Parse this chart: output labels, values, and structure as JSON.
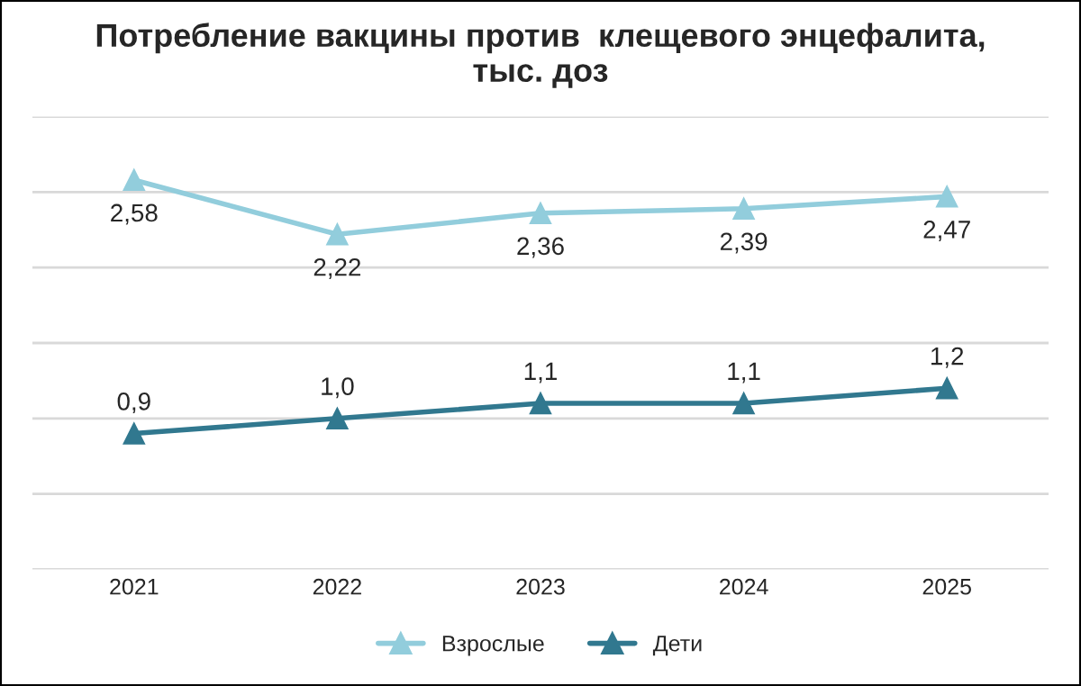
{
  "chart_data": {
    "type": "line",
    "title": "Потребление вакцины против  клещевого энцефалита,\nтыс. доз",
    "categories": [
      "2021",
      "2022",
      "2023",
      "2024",
      "2025"
    ],
    "series": [
      {
        "name": "Взрослые",
        "color": "#92cddc",
        "values": [
          2.58,
          2.22,
          2.36,
          2.39,
          2.47
        ],
        "value_labels": [
          "2,58",
          "2,22",
          "2,36",
          "2,39",
          "2,47"
        ]
      },
      {
        "name": "Дети",
        "color": "#31788f",
        "values": [
          0.9,
          1.0,
          1.1,
          1.1,
          1.2
        ],
        "value_labels": [
          "0,9",
          "1,0",
          "1,1",
          "1,1",
          "1,2"
        ]
      }
    ],
    "ylim": [
      0,
      3
    ],
    "yticks": [
      {
        "value": 0,
        "label": null
      },
      {
        "value": 0.5,
        "label": null
      },
      {
        "value": 1,
        "label": null
      },
      {
        "value": 1.5,
        "label": null
      },
      {
        "value": 2,
        "label": null
      },
      {
        "value": 2.5,
        "label": null
      },
      {
        "value": 3,
        "label": null
      }
    ],
    "tick_labels": "x",
    "grid": "y",
    "legend": "bottom",
    "marker": "triangle",
    "line_style": "solid"
  }
}
